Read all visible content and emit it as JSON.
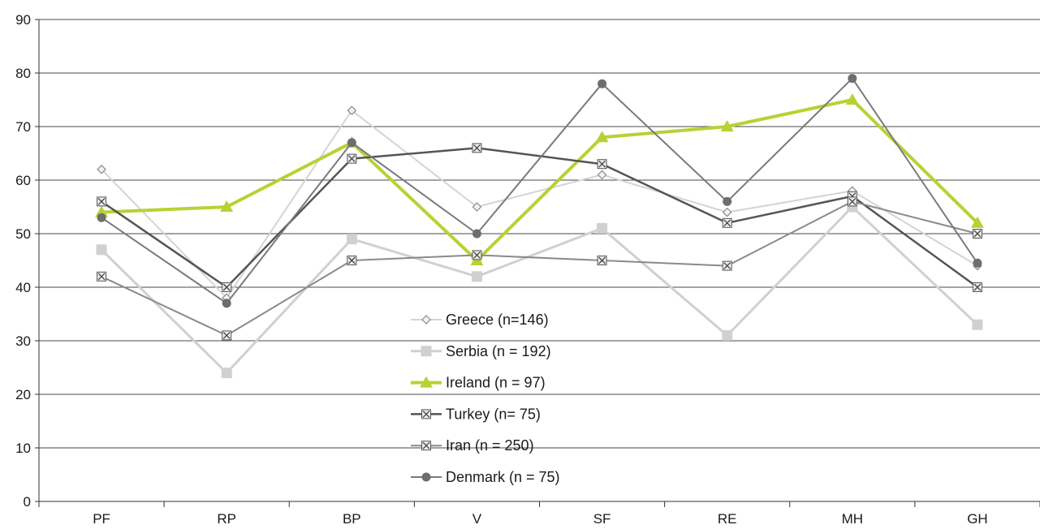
{
  "chart_data": {
    "type": "line",
    "categories": [
      "PF",
      "RP",
      "BP",
      "V",
      "SF",
      "RE",
      "MH",
      "GH"
    ],
    "ylim": [
      0,
      90
    ],
    "yticks": [
      0,
      10,
      20,
      30,
      40,
      50,
      60,
      70,
      80,
      90
    ],
    "grid": "horizontal",
    "legend_position": "center",
    "xlabel": "",
    "ylabel": "",
    "title": "",
    "series": [
      {
        "name": "Greece (n=146)",
        "values": [
          62,
          38,
          73,
          55,
          61,
          54,
          58,
          44
        ],
        "color": "#d4d4d4",
        "marker": "diamond",
        "line_width": 2
      },
      {
        "name": "Serbia (n = 192)",
        "values": [
          47,
          24,
          49,
          42,
          51,
          31,
          55,
          33
        ],
        "color": "#d0d0d0",
        "marker": "square",
        "line_width": 3
      },
      {
        "name": "Ireland (n = 97)",
        "values": [
          54,
          55,
          67,
          45,
          68,
          70,
          75,
          52
        ],
        "color": "#b5d334",
        "marker": "triangle",
        "line_width": 4
      },
      {
        "name": "Turkey (n= 75)",
        "values": [
          56,
          40,
          64,
          66,
          63,
          52,
          57,
          40
        ],
        "color": "#555555",
        "marker": "xbox",
        "line_width": 2.5
      },
      {
        "name": "Iran (n = 250)",
        "values": [
          42,
          31,
          45,
          46,
          45,
          44,
          56,
          50
        ],
        "color": "#8a8a8a",
        "marker": "xbox",
        "line_width": 2
      },
      {
        "name": "Denmark (n = 75)",
        "values": [
          53,
          37,
          67,
          50,
          78,
          56,
          79,
          44.5
        ],
        "color": "#7a7a7a",
        "marker": "circle",
        "line_width": 2
      }
    ]
  }
}
